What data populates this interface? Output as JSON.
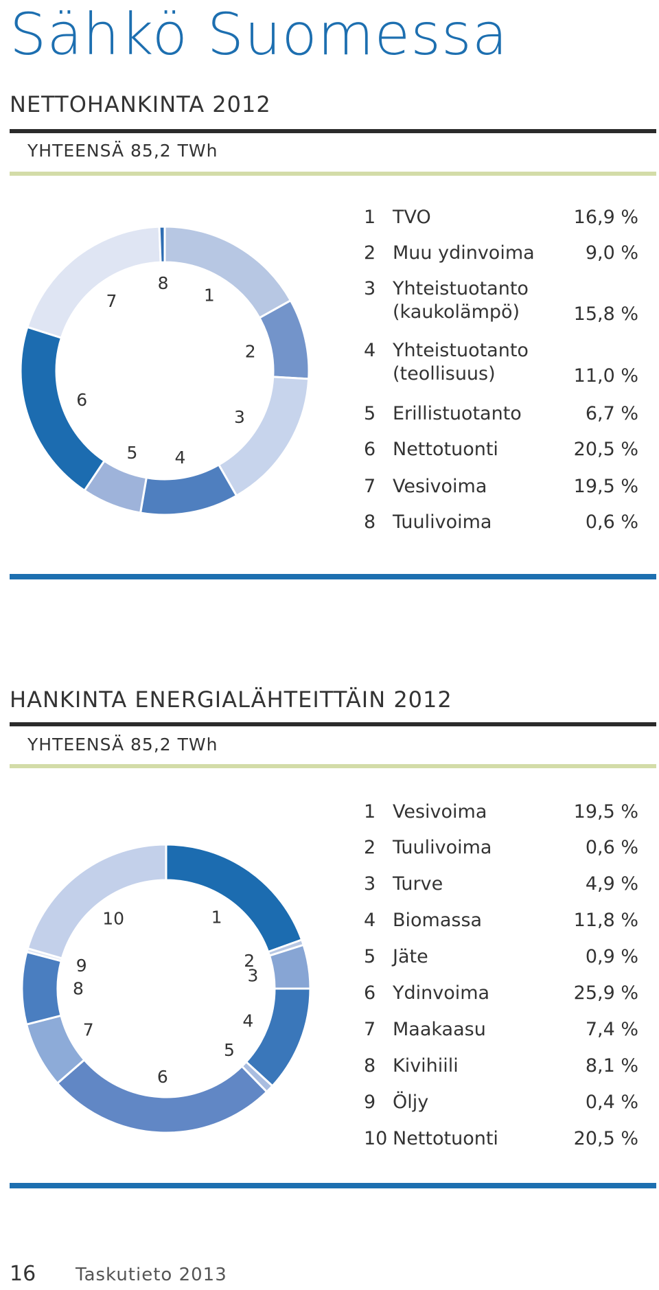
{
  "page": {
    "title": "Sähkö Suomessa",
    "footer": {
      "page_number": "16",
      "publication": "Taskutieto 2013"
    }
  },
  "chart_data": [
    {
      "type": "pie",
      "title": "NETTOHANKINTA 2012",
      "subtitle": "YHTEENSÄ 85,2 TWh",
      "categories": [
        "TVO",
        "Muu ydinvoima",
        "Yhteistuotanto (kaukolämpö)",
        "Yhteistuotanto (teollisuus)",
        "Erillistuotanto",
        "Nettotuonti",
        "Vesivoima",
        "Tuulivoima"
      ],
      "legend_labels": [
        "TVO",
        "Muu ydinvoima",
        "Yhteistuotanto\n(kaukolämpö)",
        "Yhteistuotanto\n(teollisuus)",
        "Erillistuotanto",
        "Nettotuonti",
        "Vesivoima",
        "Tuulivoima"
      ],
      "numbers": [
        "1",
        "2",
        "3",
        "4",
        "5",
        "6",
        "7",
        "8"
      ],
      "values": [
        16.9,
        9.0,
        15.8,
        11.0,
        6.7,
        20.5,
        19.5,
        0.6
      ],
      "value_labels": [
        "16,9 %",
        "9,0 %",
        "15,8 %",
        "11,0 %",
        "6,7 %",
        "20,5 %",
        "19,5 %",
        "0,6 %"
      ],
      "colors": [
        "#b7c7e3",
        "#7394ca",
        "#c7d4ec",
        "#4f7fbf",
        "#9eb3da",
        "#1c6cb0",
        "#dfe5f3",
        "#2e6db3"
      ],
      "legend_placement": "right"
    },
    {
      "type": "pie",
      "title": "HANKINTA ENERGIALÄHTEITTÄIN 2012",
      "subtitle": "YHTEENSÄ 85,2 TWh",
      "categories": [
        "Vesivoima",
        "Tuulivoima",
        "Turve",
        "Biomassa",
        "Jäte",
        "Ydinvoima",
        "Maakaasu",
        "Kivihiili",
        "Öljy",
        "Nettotuonti"
      ],
      "legend_labels": [
        "Vesivoima",
        "Tuulivoima",
        "Turve",
        "Biomassa",
        "Jäte",
        "Ydinvoima",
        "Maakaasu",
        "Kivihiili",
        "Öljy",
        "Nettotuonti"
      ],
      "numbers": [
        "1",
        "2",
        "3",
        "4",
        "5",
        "6",
        "7",
        "8",
        "9",
        "10"
      ],
      "values": [
        19.5,
        0.6,
        4.9,
        11.8,
        0.9,
        25.9,
        7.4,
        8.1,
        0.4,
        20.5
      ],
      "value_labels": [
        "19,5 %",
        "0,6 %",
        "4,9 %",
        "11,8 %",
        "0,9 %",
        "25,9 %",
        "7,4 %",
        "8,1 %",
        "0,4 %",
        "20,5 %"
      ],
      "colors": [
        "#1c6cb0",
        "#b7c7e3",
        "#87a5d4",
        "#3a77ba",
        "#a9bde0",
        "#6187c5",
        "#8dabd8",
        "#4a7ec0",
        "#dfe6f4",
        "#c3d0ea"
      ],
      "legend_placement": "right"
    }
  ]
}
